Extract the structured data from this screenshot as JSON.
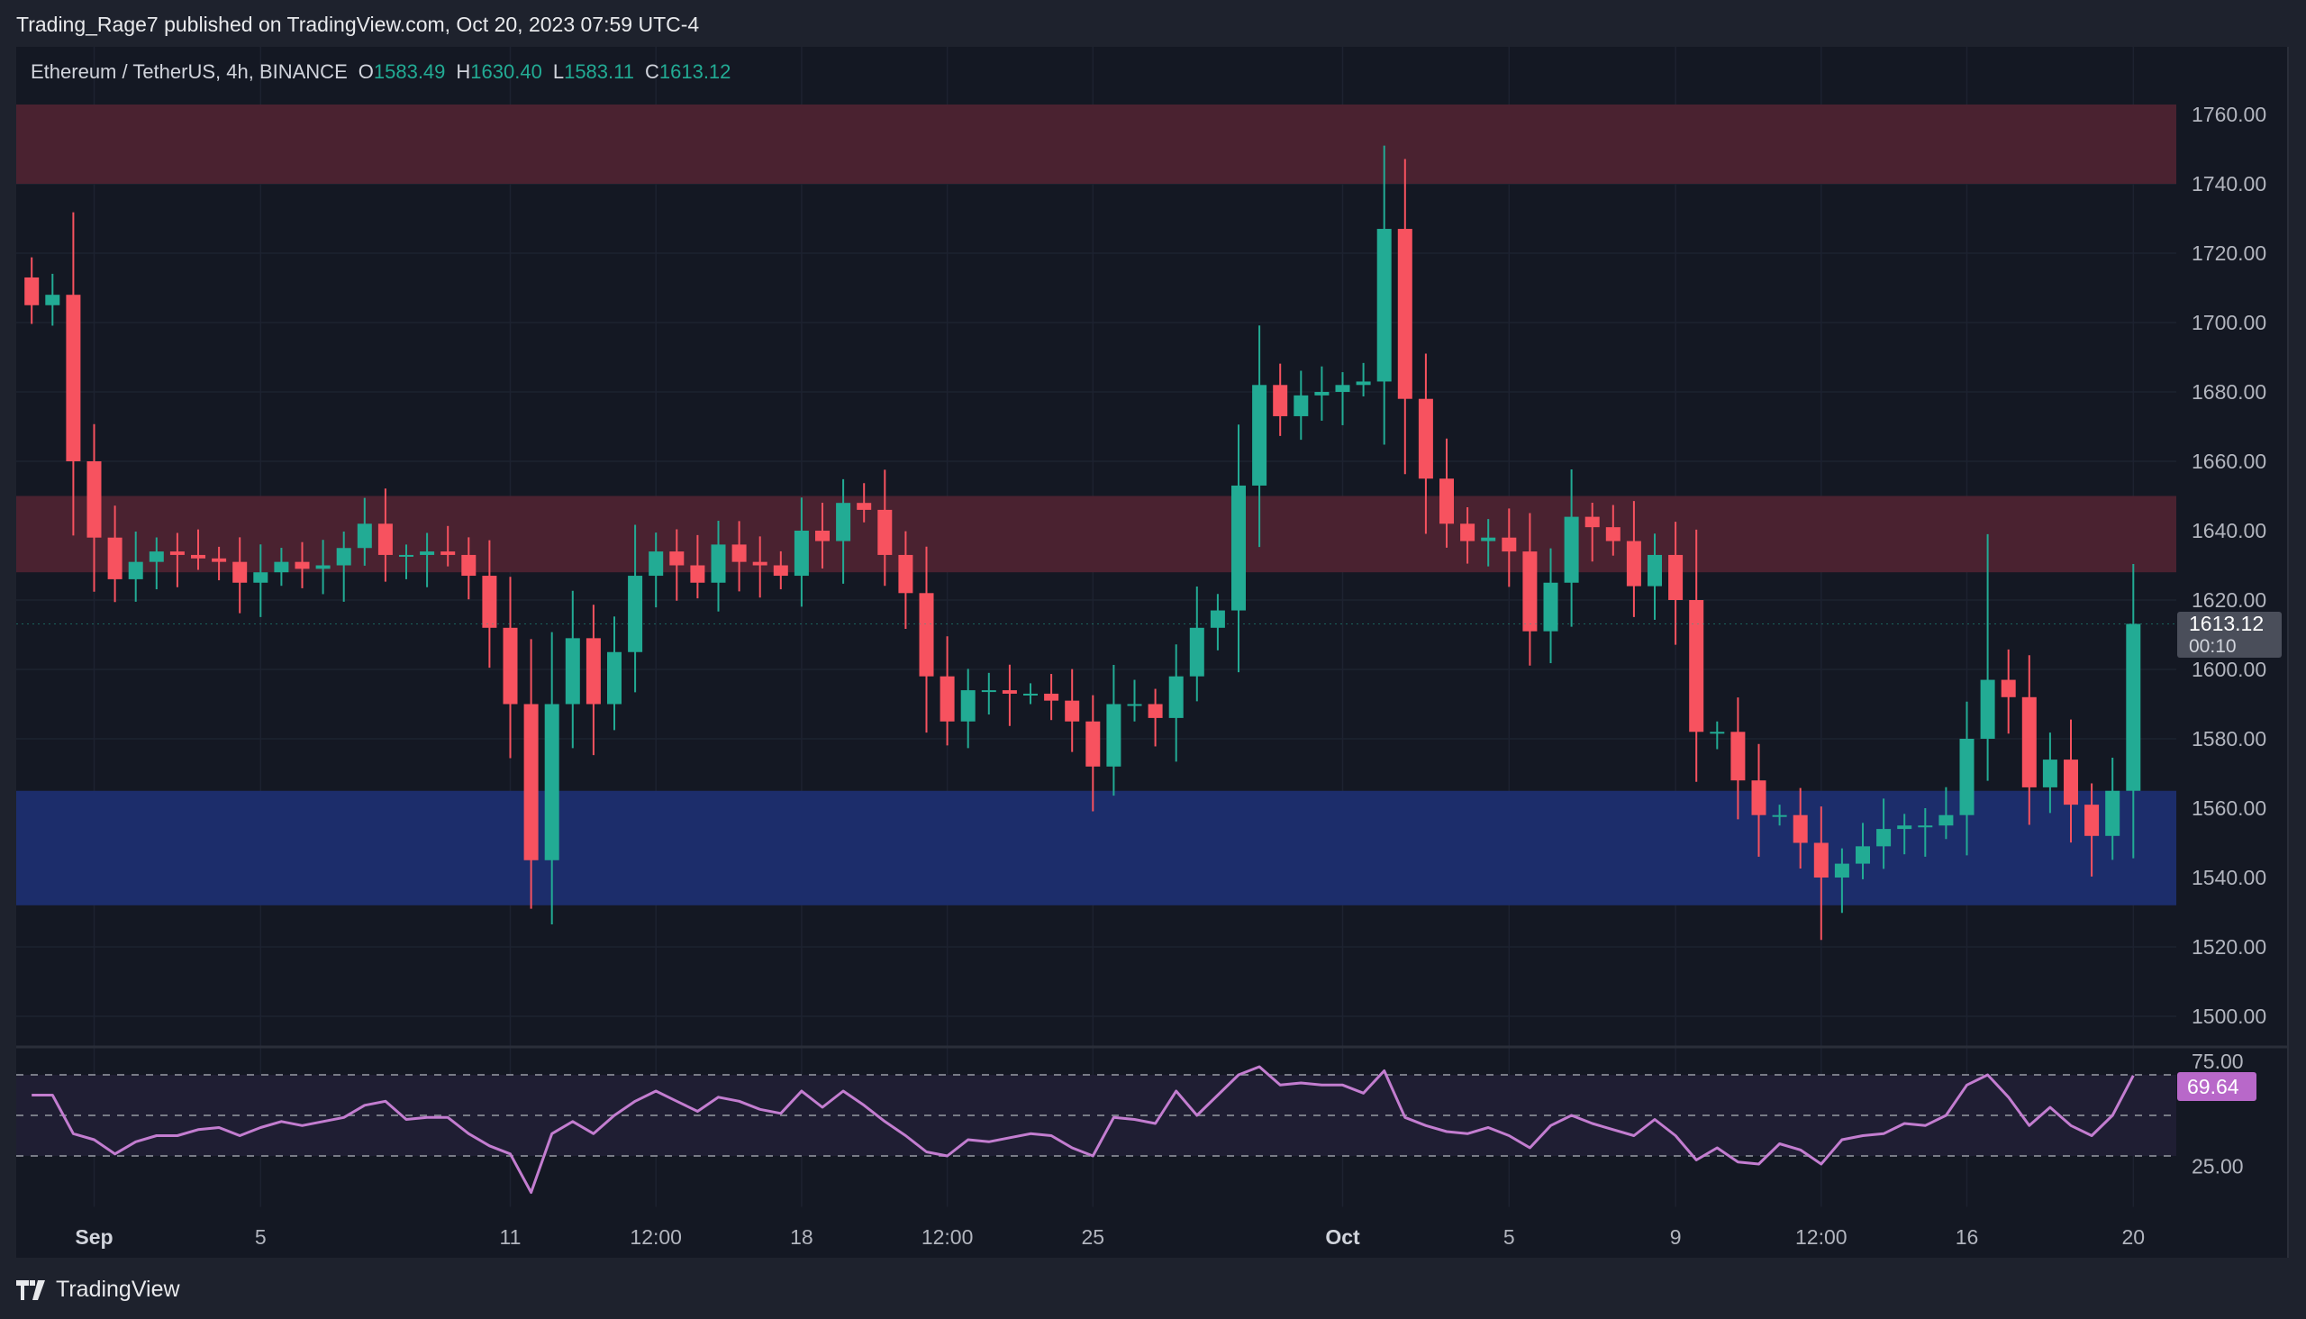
{
  "publisher": "Trading_Rage7 published on TradingView.com, Oct 20, 2023 07:59 UTC-4",
  "legend": {
    "symbol": "Ethereum / TetherUS, 4h, BINANCE",
    "o_label": "O",
    "o": "1583.49",
    "h_label": "H",
    "h": "1630.40",
    "l_label": "L",
    "l": "1583.11",
    "c_label": "C",
    "c": "1613.12"
  },
  "footer": {
    "brand": "TradingView"
  },
  "colors": {
    "up": "#22ab94",
    "down": "#f7525f",
    "resistance_zone": "#4a2230",
    "support_zone": "#1c2d6b",
    "rsi": "#c37dd0",
    "rsi_badge": "#b868c9",
    "price_badge": "#4a4e5a"
  },
  "chart_data": {
    "type": "candlestick",
    "price_axis": {
      "ylim": [
        1495,
        1762
      ],
      "ticks": [
        "1760.00",
        "1740.00",
        "1720.00",
        "1700.00",
        "1680.00",
        "1660.00",
        "1640.00",
        "1620.00",
        "1600.00",
        "1580.00",
        "1560.00",
        "1540.00",
        "1520.00",
        "1500.00"
      ]
    },
    "time_axis": {
      "ticks": [
        {
          "label": "Sep",
          "date": "2023-09-01 00:00",
          "bold": true
        },
        {
          "label": "5",
          "date": "2023-09-05 00:00"
        },
        {
          "label": "11",
          "date": "2023-09-11 00:00"
        },
        {
          "label": "12:00",
          "date": "2023-09-14 12:00"
        },
        {
          "label": "18",
          "date": "2023-09-18 00:00"
        },
        {
          "label": "12:00",
          "date": "2023-09-21 12:00"
        },
        {
          "label": "25",
          "date": "2023-09-25 00:00"
        },
        {
          "label": "Oct",
          "date": "2023-10-01 00:00",
          "bold": true
        },
        {
          "label": "5",
          "date": "2023-10-05 00:00"
        },
        {
          "label": "9",
          "date": "2023-10-09 00:00"
        },
        {
          "label": "12:00",
          "date": "2023-10-12 12:00"
        },
        {
          "label": "16",
          "date": "2023-10-16 00:00"
        },
        {
          "label": "20",
          "date": "2023-10-20 00:00"
        }
      ]
    },
    "zones": [
      {
        "kind": "resistance",
        "from": 1740,
        "to": 1763
      },
      {
        "kind": "resistance",
        "from": 1628,
        "to": 1650
      },
      {
        "kind": "support",
        "from": 1532,
        "to": 1565
      }
    ],
    "series_start": "2023-08-30 12:00",
    "close": [
      1705,
      1708,
      1660,
      1638,
      1626,
      1631,
      1634,
      1633,
      1632,
      1631,
      1625,
      1628,
      1631,
      1629,
      1630,
      1635,
      1642,
      1633,
      1633,
      1634,
      1633,
      1627,
      1612,
      1590,
      1545,
      1590,
      1609,
      1590,
      1605,
      1627,
      1634,
      1630,
      1625,
      1636,
      1631,
      1630,
      1627,
      1640,
      1637,
      1648,
      1646,
      1633,
      1622,
      1598,
      1585,
      1594,
      1594,
      1593,
      1593,
      1591,
      1585,
      1572,
      1590,
      1590,
      1586,
      1598,
      1612,
      1617,
      1653,
      1682,
      1673,
      1679,
      1680,
      1682,
      1683,
      1727,
      1678,
      1655,
      1642,
      1637,
      1638,
      1634,
      1611,
      1625,
      1644,
      1641,
      1637,
      1624,
      1633,
      1620,
      1582,
      1582,
      1568,
      1558,
      1558,
      1550,
      1540,
      1544,
      1549,
      1554,
      1555,
      1555,
      1558,
      1580,
      1597,
      1592,
      1566,
      1574,
      1561,
      1552,
      1565,
      1613.12
    ],
    "extremes": [
      {
        "date": "2023-10-02 00:00",
        "high": 1751
      },
      {
        "date": "2023-09-11 12:00",
        "low": 1531
      },
      {
        "date": "2023-10-12 12:00",
        "low": 1522
      },
      {
        "date": "2023-10-16 12:00",
        "high": 1639
      },
      {
        "date": "2023-10-20 00:00",
        "high": 1630.4
      }
    ],
    "current_price": {
      "value": "1613.12",
      "countdown": "00:10"
    },
    "rsi": {
      "levels": [
        70,
        50,
        30
      ],
      "axis_ticks": [
        "75.00",
        "25.00"
      ],
      "ylim": [
        0,
        100
      ],
      "current": "69.64",
      "values": [
        60,
        60,
        41,
        38,
        31,
        37,
        40,
        40,
        43,
        44,
        40,
        44,
        47,
        45,
        47,
        49,
        55,
        57,
        48,
        49,
        49,
        41,
        35,
        31,
        12,
        41,
        47,
        41,
        50,
        57,
        62,
        57,
        52,
        59,
        57,
        53,
        51,
        62,
        54,
        62,
        55,
        47,
        40,
        32,
        30,
        38,
        37,
        39,
        41,
        40,
        34,
        30,
        49,
        48,
        46,
        62,
        50,
        60,
        70,
        74,
        65,
        66,
        65,
        65,
        61,
        72,
        49,
        45,
        42,
        41,
        44,
        40,
        34,
        45,
        50,
        46,
        43,
        40,
        48,
        40,
        28,
        34,
        27,
        26,
        36,
        33,
        26,
        38,
        40,
        41,
        46,
        45,
        50,
        65,
        70,
        59,
        45,
        54,
        45,
        40,
        50,
        69.64
      ]
    }
  }
}
